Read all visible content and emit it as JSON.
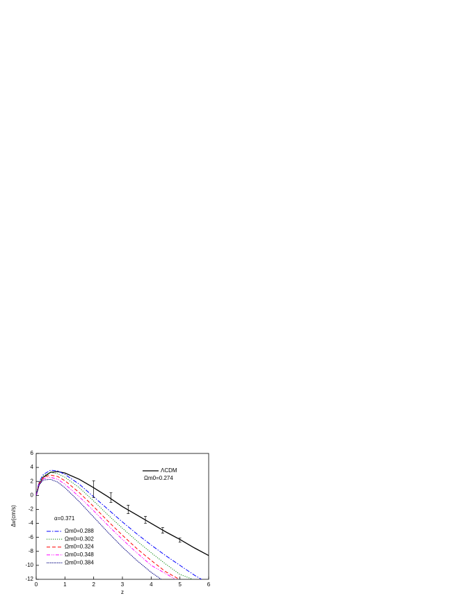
{
  "chart_data": {
    "type": "line",
    "xlabel": "z",
    "ylabel": "Δv(cm/s)",
    "xlim": [
      0,
      6
    ],
    "ylim": [
      -12,
      6
    ],
    "xticks": [
      0,
      1,
      2,
      3,
      4,
      5,
      6
    ],
    "yticks": [
      -12,
      -10,
      -8,
      -6,
      -4,
      -2,
      0,
      2,
      4,
      6
    ],
    "annotations": [
      "Ωm0=0.274",
      "α=0.371"
    ],
    "series": [
      {
        "name": "ΛCDM",
        "color": "#000000",
        "style": "solid",
        "x": [
          0,
          0.1,
          0.25,
          0.5,
          0.75,
          1,
          1.5,
          2,
          2.5,
          3,
          3.5,
          4,
          4.5,
          5,
          5.5,
          6
        ],
        "values": [
          0,
          1.5,
          2.6,
          3.3,
          3.4,
          3.2,
          2.3,
          1.1,
          -0.2,
          -1.6,
          -2.8,
          -4.0,
          -5.2,
          -6.3,
          -7.5,
          -8.6
        ]
      },
      {
        "name": "Ωm0=0.288",
        "color": "#0000ff",
        "style": "dashdot",
        "x": [
          0,
          0.1,
          0.25,
          0.5,
          0.75,
          1,
          1.5,
          2,
          2.5,
          3,
          3.5,
          4,
          4.5,
          5,
          5.5,
          5.75
        ],
        "values": [
          0,
          1.9,
          3.0,
          3.6,
          3.5,
          3.0,
          1.6,
          -0.2,
          -2.0,
          -3.8,
          -5.5,
          -7.1,
          -8.6,
          -10.0,
          -11.4,
          -12
        ]
      },
      {
        "name": "Ωm0=0.302",
        "color": "#008000",
        "style": "dot",
        "x": [
          0,
          0.1,
          0.25,
          0.5,
          0.75,
          1,
          1.5,
          2,
          2.5,
          3,
          3.5,
          4,
          4.5,
          5,
          5.45
        ],
        "values": [
          0,
          1.8,
          2.8,
          3.3,
          3.1,
          2.6,
          1.1,
          -0.8,
          -2.8,
          -4.7,
          -6.5,
          -8.2,
          -9.8,
          -11.3,
          -12
        ]
      },
      {
        "name": "Ωm0=0.324",
        "color": "#ff0000",
        "style": "dash",
        "x": [
          0,
          0.1,
          0.25,
          0.5,
          0.75,
          1,
          1.5,
          2,
          2.5,
          3,
          3.5,
          4,
          4.5,
          4.98
        ],
        "values": [
          0,
          1.7,
          2.6,
          2.9,
          2.7,
          2.1,
          0.4,
          -1.6,
          -3.7,
          -5.7,
          -7.6,
          -9.3,
          -10.9,
          -12
        ]
      },
      {
        "name": "Ωm0=0.348",
        "color": "#ff00ff",
        "style": "dashdotdot",
        "x": [
          0,
          0.1,
          0.25,
          0.5,
          0.75,
          1,
          1.5,
          2,
          2.5,
          3,
          3.5,
          4,
          4.85
        ],
        "values": [
          0,
          1.6,
          2.4,
          2.6,
          2.3,
          1.6,
          -0.2,
          -2.2,
          -4.3,
          -6.3,
          -8.2,
          -10.0,
          -12
        ]
      },
      {
        "name": "Ωm0=0.384",
        "color": "#000080",
        "style": "shortdot",
        "x": [
          0,
          0.1,
          0.25,
          0.5,
          0.75,
          1,
          1.5,
          2,
          2.5,
          3,
          3.5,
          4,
          4.35
        ],
        "values": [
          0,
          1.5,
          2.2,
          2.3,
          1.9,
          1.1,
          -0.9,
          -3.1,
          -5.3,
          -7.4,
          -9.3,
          -11.0,
          -12
        ]
      }
    ],
    "error_bars": {
      "color": "#000000",
      "x": [
        2,
        2.6,
        3.2,
        3.8,
        4.4,
        5.0
      ],
      "values": [
        0.9,
        -0.3,
        -2.0,
        -3.5,
        -5.0,
        -6.4
      ],
      "errors": [
        1.2,
        0.7,
        0.6,
        0.5,
        0.4,
        0.3
      ]
    }
  }
}
